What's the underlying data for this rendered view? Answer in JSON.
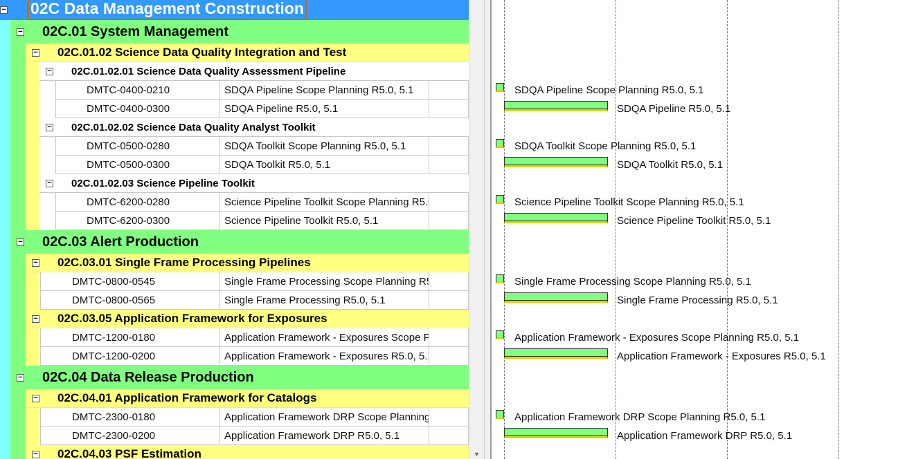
{
  "colors": {
    "level0": "#3399ff",
    "level1": "#80ff80",
    "level2": "#ffff80",
    "level3": "#ffffff",
    "gutter": "#80ffff",
    "bar": "#80ff80",
    "bar_stripe": "#d8d800"
  },
  "rows": [
    {
      "type": "group",
      "level": 0,
      "label": "02C  Data Management Construction"
    },
    {
      "type": "group",
      "level": 1,
      "label": "02C.01  System Management"
    },
    {
      "type": "group",
      "level": 2,
      "label": "02C.01.02  Science Data Quality Integration and Test"
    },
    {
      "type": "group",
      "level": 3,
      "label": "02C.01.02.01  Science Data Quality Assessment Pipeline"
    },
    {
      "type": "task",
      "parent": 3,
      "id": "DMTC-0400-0210",
      "name": "SDQA Pipeline Scope Planning R5.0, 5.1",
      "gantt": "milestone",
      "gantt_label": "SDQA Pipeline Scope Planning R5.0, 5.1"
    },
    {
      "type": "task",
      "parent": 3,
      "id": "DMTC-0400-0300",
      "name": "SDQA Pipeline R5.0, 5.1",
      "gantt": "bar",
      "gantt_label": "SDQA Pipeline R5.0, 5.1"
    },
    {
      "type": "group",
      "level": 3,
      "label": "02C.01.02.02  Science Data Quality Analyst Toolkit"
    },
    {
      "type": "task",
      "parent": 3,
      "id": "DMTC-0500-0280",
      "name": "SDQA Toolkit Scope Planning R5.0, 5.1",
      "gantt": "milestone",
      "gantt_label": "SDQA Toolkit Scope Planning R5.0, 5.1"
    },
    {
      "type": "task",
      "parent": 3,
      "id": "DMTC-0500-0300",
      "name": "SDQA Toolkit R5.0, 5.1",
      "gantt": "bar",
      "gantt_label": "SDQA Toolkit R5.0, 5.1"
    },
    {
      "type": "group",
      "level": 3,
      "label": "02C.01.02.03  Science Pipeline Toolkit"
    },
    {
      "type": "task",
      "parent": 3,
      "id": "DMTC-6200-0280",
      "name": "Science Pipeline Toolkit Scope Planning R5.0, 5.1",
      "gantt": "milestone",
      "gantt_label": "Science Pipeline Toolkit Scope Planning R5.0, 5.1"
    },
    {
      "type": "task",
      "parent": 3,
      "id": "DMTC-6200-0300",
      "name": "Science Pipeline Toolkit R5.0, 5.1",
      "gantt": "bar",
      "gantt_label": "Science Pipeline Toolkit R5.0, 5.1"
    },
    {
      "type": "group",
      "level": 1,
      "label": "02C.03  Alert Production"
    },
    {
      "type": "group",
      "level": 2,
      "label": "02C.03.01  Single Frame Processing Pipelines"
    },
    {
      "type": "task",
      "parent": 2,
      "id": "DMTC-0800-0545",
      "name": "Single Frame Processing Scope Planning R5.0, 5.1",
      "gantt": "milestone",
      "gantt_label": "Single Frame Processing Scope Planning R5.0, 5.1"
    },
    {
      "type": "task",
      "parent": 2,
      "id": "DMTC-0800-0565",
      "name": "Single Frame Processing R5.0, 5.1",
      "gantt": "bar",
      "gantt_label": "Single Frame Processing R5.0, 5.1"
    },
    {
      "type": "group",
      "level": 2,
      "label": "02C.03.05  Application Framework for Exposures"
    },
    {
      "type": "task",
      "parent": 2,
      "id": "DMTC-1200-0180",
      "name": "Application Framework - Exposures Scope Planning R5.0, 5.1",
      "gantt": "milestone",
      "gantt_label": "Application Framework - Exposures Scope Planning R5.0, 5.1"
    },
    {
      "type": "task",
      "parent": 2,
      "id": "DMTC-1200-0200",
      "name": "Application Framework  - Exposures R5.0, 5.1",
      "gantt": "bar",
      "gantt_label": "Application Framework  - Exposures R5.0, 5.1"
    },
    {
      "type": "group",
      "level": 1,
      "label": "02C.04  Data Release Production"
    },
    {
      "type": "group",
      "level": 2,
      "label": "02C.04.01  Application Framework for Catalogs"
    },
    {
      "type": "task",
      "parent": 2,
      "id": "DMTC-2300-0180",
      "name": "Application Framework DRP Scope Planning R5.0, 5.1",
      "gantt": "milestone",
      "gantt_label": "Application Framework DRP Scope Planning R5.0, 5.1"
    },
    {
      "type": "task",
      "parent": 2,
      "id": "DMTC-2300-0200",
      "name": "Application Framework DRP R5.0, 5.1",
      "gantt": "bar",
      "gantt_label": "Application Framework DRP R5.0, 5.1"
    },
    {
      "type": "group",
      "level": 2,
      "label": "02C.04.03  PSF Estimation"
    }
  ]
}
